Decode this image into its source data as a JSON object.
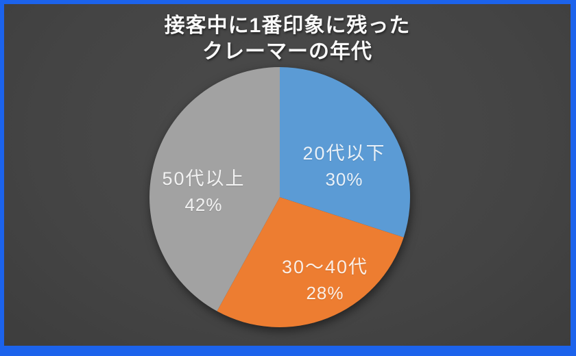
{
  "window": {
    "frame_color": "#1C63EC",
    "slide_background": "#464646"
  },
  "chart_data": {
    "type": "pie",
    "title": "接客中に1番印象に残ったクレーマーの年代",
    "title_lines": [
      "接客中に1番印象に残った",
      "クレーマーの年代"
    ],
    "slices": [
      {
        "label": "20代以下",
        "value": 30,
        "pct": "30%",
        "color": "#5B9BD5"
      },
      {
        "label": "30〜40代",
        "value": 28,
        "pct": "28%",
        "color": "#ED7D31"
      },
      {
        "label": "50代以上",
        "value": 42,
        "pct": "42%",
        "color": "#A2A2A2"
      }
    ],
    "start_angle_deg": 0,
    "direction": "clockwise",
    "legend": "none",
    "label_style": "category name and percent inside slices",
    "label_text_color": "rgba(255,255,255,0.88)",
    "title_text_color": "#FAFAFA"
  }
}
